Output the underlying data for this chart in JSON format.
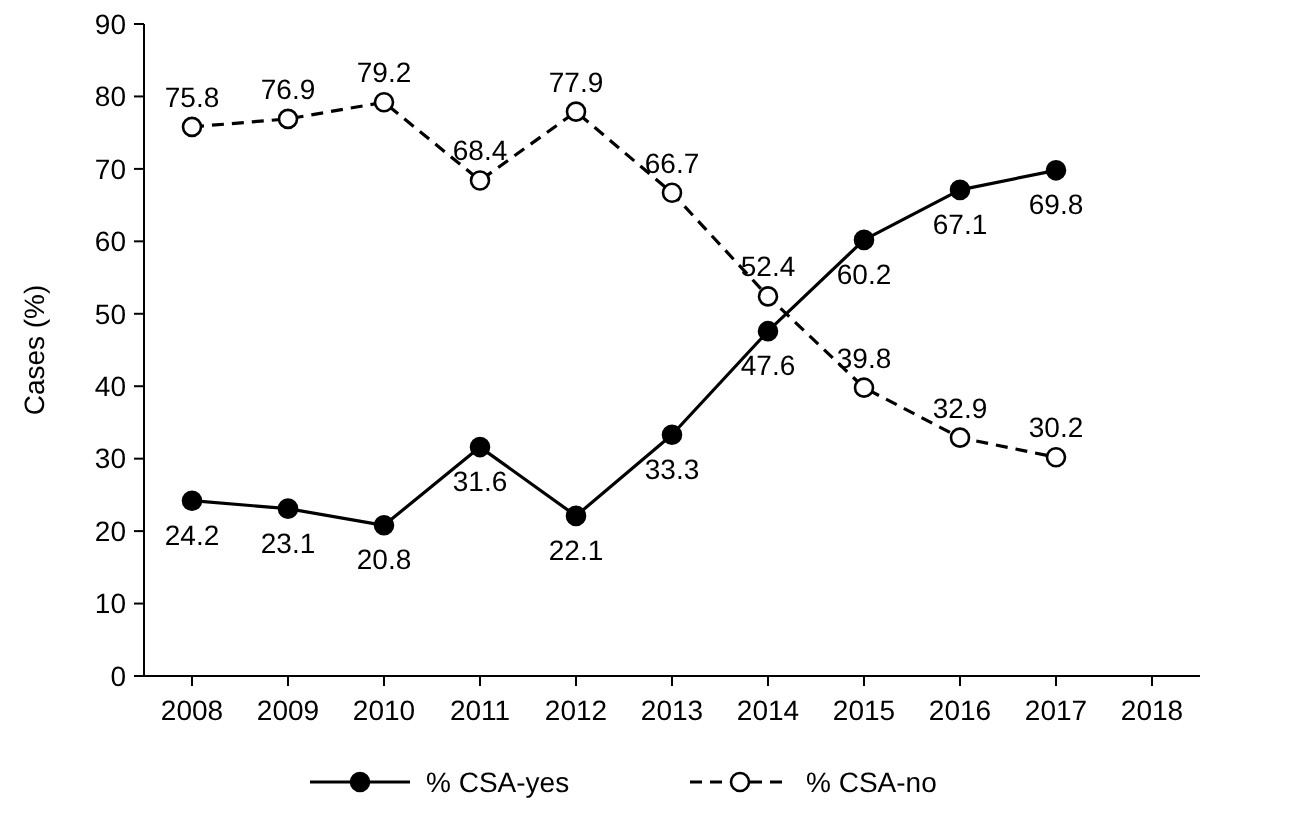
{
  "chart_data": {
    "type": "line",
    "ylabel": "Cases (%)",
    "categories": [
      "2008",
      "2009",
      "2010",
      "2011",
      "2012",
      "2013",
      "2014",
      "2015",
      "2016",
      "2017",
      "2018"
    ],
    "series": [
      {
        "name": "% CSA-yes",
        "color": "#000000",
        "line_style": "solid",
        "values": [
          24.2,
          23.1,
          20.8,
          31.6,
          22.1,
          33.3,
          47.6,
          60.2,
          67.1,
          69.8,
          null
        ]
      },
      {
        "name": "% CSA-no",
        "color": "#000000",
        "line_style": "dashed",
        "values": [
          75.8,
          76.9,
          79.2,
          68.4,
          77.9,
          66.7,
          52.4,
          39.8,
          32.9,
          30.2,
          null
        ]
      }
    ],
    "ylim": [
      0,
      90
    ],
    "yticks": [
      0,
      10,
      20,
      30,
      40,
      50,
      60,
      70,
      80,
      90
    ],
    "data_labels": true,
    "marker": "circle",
    "legend": "bottom",
    "grid": false
  }
}
